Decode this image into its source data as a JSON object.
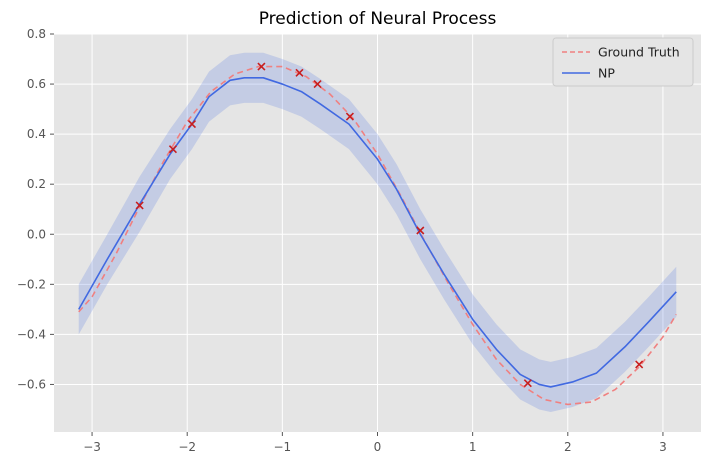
{
  "chart_data": {
    "type": "line",
    "title": "Prediction of Neural Process",
    "xlabel": "",
    "ylabel": "",
    "xlim": [
      -3.4,
      3.4
    ],
    "ylim": [
      -0.79,
      0.8
    ],
    "xticks": [
      -3,
      -2,
      -1,
      0,
      1,
      2,
      3
    ],
    "xtick_labels": [
      "−3",
      "−2",
      "−1",
      "0",
      "1",
      "2",
      "3"
    ],
    "yticks": [
      -0.6,
      -0.4,
      -0.2,
      0.0,
      0.2,
      0.4,
      0.6,
      0.8
    ],
    "ytick_labels": [
      "−0.6",
      "−0.4",
      "−0.2",
      "0.0",
      "0.2",
      "0.4",
      "0.6",
      "0.8"
    ],
    "grid": true,
    "legend_position": "top-right",
    "series": [
      {
        "name": "Ground Truth",
        "style": "dashed",
        "color": "#f08080",
        "x": [
          -3.14,
          -3.0,
          -2.75,
          -2.5,
          -2.25,
          -2.0,
          -1.75,
          -1.5,
          -1.25,
          -1.0,
          -0.75,
          -0.5,
          -0.25,
          0.0,
          0.25,
          0.5,
          0.75,
          1.0,
          1.25,
          1.5,
          1.75,
          2.0,
          2.25,
          2.5,
          2.75,
          3.0,
          3.14
        ],
        "y": [
          -0.31,
          -0.25,
          -0.08,
          0.11,
          0.29,
          0.45,
          0.57,
          0.64,
          0.67,
          0.67,
          0.63,
          0.56,
          0.46,
          0.32,
          0.15,
          -0.03,
          -0.2,
          -0.36,
          -0.5,
          -0.6,
          -0.66,
          -0.68,
          -0.67,
          -0.62,
          -0.53,
          -0.41,
          -0.32
        ]
      },
      {
        "name": "NP",
        "style": "solid",
        "color": "#4169e1",
        "x": [
          -3.14,
          -2.84,
          -2.5,
          -2.18,
          -1.95,
          -1.77,
          -1.55,
          -1.4,
          -1.2,
          -1.0,
          -0.8,
          -0.6,
          -0.3,
          0.0,
          0.2,
          0.45,
          0.7,
          1.0,
          1.25,
          1.5,
          1.7,
          1.82,
          2.05,
          2.3,
          2.6,
          2.85,
          3.14
        ],
        "y": [
          -0.3,
          -0.1,
          0.12,
          0.32,
          0.44,
          0.55,
          0.615,
          0.625,
          0.625,
          0.6,
          0.57,
          0.52,
          0.44,
          0.3,
          0.18,
          0.0,
          -0.16,
          -0.34,
          -0.46,
          -0.56,
          -0.6,
          -0.61,
          -0.59,
          -0.555,
          -0.45,
          -0.35,
          -0.23
        ]
      }
    ],
    "confidence_band": {
      "x": [
        -3.14,
        -2.84,
        -2.5,
        -2.18,
        -1.95,
        -1.77,
        -1.55,
        -1.4,
        -1.2,
        -1.0,
        -0.8,
        -0.6,
        -0.3,
        0.0,
        0.2,
        0.45,
        0.7,
        1.0,
        1.25,
        1.5,
        1.7,
        1.82,
        2.05,
        2.3,
        2.6,
        2.85,
        3.14
      ],
      "upper": [
        -0.2,
        0.0,
        0.23,
        0.42,
        0.54,
        0.65,
        0.715,
        0.725,
        0.725,
        0.7,
        0.67,
        0.62,
        0.54,
        0.4,
        0.28,
        0.1,
        -0.06,
        -0.24,
        -0.36,
        -0.46,
        -0.5,
        -0.51,
        -0.49,
        -0.455,
        -0.35,
        -0.25,
        -0.13
      ],
      "lower": [
        -0.4,
        -0.2,
        0.01,
        0.22,
        0.34,
        0.45,
        0.515,
        0.525,
        0.525,
        0.5,
        0.47,
        0.42,
        0.34,
        0.2,
        0.08,
        -0.1,
        -0.26,
        -0.44,
        -0.56,
        -0.66,
        -0.7,
        -0.71,
        -0.69,
        -0.655,
        -0.55,
        -0.45,
        -0.33
      ],
      "color": "#4169e1"
    },
    "context_points": {
      "marker": "x",
      "color": "#c81e1e",
      "x": [
        -2.5,
        -2.15,
        -1.95,
        -1.22,
        -0.82,
        -0.63,
        -0.29,
        0.45,
        1.58,
        2.75
      ],
      "y": [
        0.115,
        0.34,
        0.44,
        0.67,
        0.645,
        0.6,
        0.47,
        0.015,
        -0.595,
        -0.52
      ]
    }
  },
  "colors": {
    "plot_background": "#e5e5e5",
    "grid": "#ffffff",
    "figure_background": "#ffffff"
  }
}
